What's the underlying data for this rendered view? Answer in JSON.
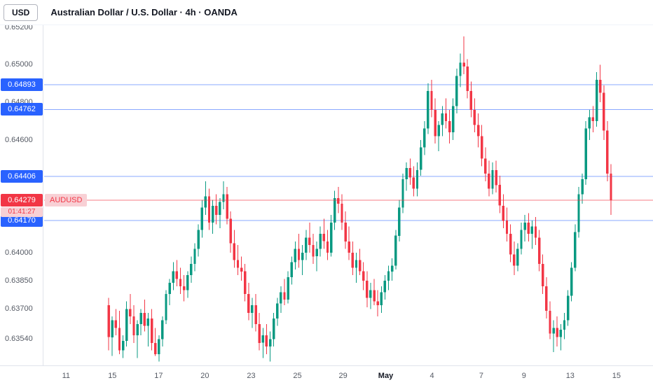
{
  "header": {
    "unit_button": "USD",
    "title": "Australian Dollar / U.S. Dollar · 4h · OANDA"
  },
  "colors": {
    "up": "#089981",
    "down": "#F23645",
    "level_line": "#2962FF",
    "badge_blue_bg": "#2962FF",
    "badge_red_bg": "#F23645",
    "chip_pink_bg": "#F8D0D5",
    "chip_red_text": "#F23645",
    "axis_text": "#555A64",
    "title_text": "#131722",
    "border": "#E0E3EB"
  },
  "price_scale": {
    "labels": [
      "0.65200",
      "0.65000",
      "0.64800",
      "0.64600",
      "0.64000",
      "0.63850",
      "0.63700",
      "0.63540"
    ],
    "level_badges": [
      "0.64893",
      "0.64762",
      "0.64406",
      "0.64170"
    ],
    "current_price_badge": {
      "value": "0.64279",
      "symbol": "AUDUSD",
      "countdown": "01:41:27"
    }
  },
  "time_axis": {
    "labels": [
      {
        "label": "11",
        "pos": 0.036
      },
      {
        "label": "15",
        "pos": 0.112
      },
      {
        "label": "17",
        "pos": 0.188
      },
      {
        "label": "20",
        "pos": 0.264
      },
      {
        "label": "23",
        "pos": 0.34
      },
      {
        "label": "25",
        "pos": 0.416
      },
      {
        "label": "29",
        "pos": 0.491
      },
      {
        "label": "May",
        "pos": 0.561,
        "emphasis": true
      },
      {
        "label": "4",
        "pos": 0.637
      },
      {
        "label": "7",
        "pos": 0.718
      },
      {
        "label": "9",
        "pos": 0.788
      },
      {
        "label": "13",
        "pos": 0.864
      },
      {
        "label": "15",
        "pos": 0.94
      }
    ]
  },
  "chart_data": {
    "type": "candlestick",
    "title": "Australian Dollar / U.S. Dollar",
    "symbol": "AUDUSD",
    "interval": "4h",
    "exchange": "OANDA",
    "y_range": [
      0.634,
      0.6521
    ],
    "x_span": [
      0.106,
      0.931
    ],
    "value_divisor": 100000,
    "horizontal_lines": [
      0.64893,
      0.64762,
      0.64406,
      0.6417
    ],
    "last_price": 0.64279,
    "current_price_line": true,
    "grid": false,
    "candles": [
      [
        63720,
        63760,
        63480,
        63550
      ],
      [
        63550,
        63660,
        63450,
        63640
      ],
      [
        63640,
        63700,
        63560,
        63600
      ],
      [
        63600,
        63690,
        63460,
        63480
      ],
      [
        63480,
        63560,
        63440,
        63530
      ],
      [
        63530,
        63740,
        63500,
        63700
      ],
      [
        63700,
        63780,
        63620,
        63660
      ],
      [
        63660,
        63720,
        63520,
        63560
      ],
      [
        63560,
        63640,
        63440,
        63620
      ],
      [
        63620,
        63700,
        63560,
        63680
      ],
      [
        63680,
        63750,
        63580,
        63610
      ],
      [
        63610,
        63680,
        63500,
        63650
      ],
      [
        63650,
        63700,
        63480,
        63520
      ],
      [
        63520,
        63600,
        63450,
        63460
      ],
      [
        63460,
        63560,
        63420,
        63540
      ],
      [
        63540,
        63660,
        63500,
        63640
      ],
      [
        63640,
        63800,
        63620,
        63780
      ],
      [
        63780,
        63860,
        63720,
        63840
      ],
      [
        63840,
        63950,
        63800,
        63900
      ],
      [
        63900,
        63960,
        63820,
        63860
      ],
      [
        63860,
        63920,
        63780,
        63820
      ],
      [
        63820,
        63880,
        63740,
        63800
      ],
      [
        63800,
        63900,
        63760,
        63880
      ],
      [
        63880,
        63980,
        63840,
        63940
      ],
      [
        63940,
        64050,
        63900,
        64020
      ],
      [
        64020,
        64150,
        63980,
        64120
      ],
      [
        64120,
        64280,
        64080,
        64240
      ],
      [
        64240,
        64380,
        64200,
        64300
      ],
      [
        64300,
        64340,
        64120,
        64160
      ],
      [
        64160,
        64280,
        64100,
        64250
      ],
      [
        64250,
        64310,
        64150,
        64200
      ],
      [
        64200,
        64290,
        64130,
        64270
      ],
      [
        64270,
        64380,
        64230,
        64310
      ],
      [
        64310,
        64350,
        64150,
        64180
      ],
      [
        64180,
        64220,
        64000,
        64050
      ],
      [
        64050,
        64120,
        63920,
        63960
      ],
      [
        63960,
        64040,
        63880,
        63920
      ],
      [
        63920,
        63980,
        63850,
        63900
      ],
      [
        63900,
        63940,
        63740,
        63780
      ],
      [
        63780,
        63840,
        63640,
        63680
      ],
      [
        63680,
        63760,
        63600,
        63720
      ],
      [
        63720,
        63780,
        63580,
        63620
      ],
      [
        63620,
        63680,
        63480,
        63520
      ],
      [
        63520,
        63600,
        63440,
        63560
      ],
      [
        63560,
        63620,
        63460,
        63500
      ],
      [
        63500,
        63580,
        63420,
        63540
      ],
      [
        63540,
        63680,
        63500,
        63650
      ],
      [
        63650,
        63760,
        63610,
        63730
      ],
      [
        63730,
        63820,
        63680,
        63790
      ],
      [
        63790,
        63860,
        63720,
        63750
      ],
      [
        63750,
        63900,
        63730,
        63870
      ],
      [
        63870,
        63980,
        63830,
        63950
      ],
      [
        63950,
        64060,
        63910,
        64020
      ],
      [
        64020,
        64100,
        63920,
        63960
      ],
      [
        63960,
        64040,
        63880,
        64000
      ],
      [
        64000,
        64120,
        63960,
        64080
      ],
      [
        64080,
        64160,
        64000,
        64040
      ],
      [
        64040,
        64100,
        63940,
        63980
      ],
      [
        63980,
        64060,
        63900,
        64020
      ],
      [
        64020,
        64140,
        63980,
        64100
      ],
      [
        64100,
        64180,
        64020,
        64060
      ],
      [
        64060,
        64120,
        63960,
        64000
      ],
      [
        64000,
        64200,
        63980,
        64160
      ],
      [
        64160,
        64330,
        64120,
        64290
      ],
      [
        64290,
        64350,
        64210,
        64260
      ],
      [
        64260,
        64310,
        64120,
        64160
      ],
      [
        64160,
        64220,
        64020,
        64060
      ],
      [
        64060,
        64140,
        63960,
        64000
      ],
      [
        64000,
        64060,
        63880,
        63920
      ],
      [
        63920,
        64000,
        63840,
        63960
      ],
      [
        63960,
        64020,
        63880,
        63900
      ],
      [
        63900,
        63950,
        63800,
        63850
      ],
      [
        63850,
        63900,
        63710,
        63760
      ],
      [
        63760,
        63840,
        63700,
        63800
      ],
      [
        63800,
        63860,
        63720,
        63740
      ],
      [
        63740,
        63800,
        63660,
        63720
      ],
      [
        63720,
        63820,
        63680,
        63790
      ],
      [
        63790,
        63880,
        63750,
        63850
      ],
      [
        63850,
        63930,
        63800,
        63900
      ],
      [
        63900,
        63970,
        63850,
        63930
      ],
      [
        63930,
        64120,
        63910,
        64090
      ],
      [
        64090,
        64280,
        64060,
        64240
      ],
      [
        64240,
        64420,
        64210,
        64390
      ],
      [
        64390,
        64480,
        64330,
        64450
      ],
      [
        64450,
        64500,
        64360,
        64400
      ],
      [
        64400,
        64460,
        64300,
        64340
      ],
      [
        64340,
        64480,
        64300,
        64440
      ],
      [
        64440,
        64600,
        64410,
        64560
      ],
      [
        64560,
        64700,
        64520,
        64660
      ],
      [
        64660,
        64900,
        64630,
        64860
      ],
      [
        64860,
        64920,
        64720,
        64760
      ],
      [
        64760,
        64820,
        64580,
        64620
      ],
      [
        64620,
        64700,
        64540,
        64680
      ],
      [
        64680,
        64780,
        64620,
        64740
      ],
      [
        64740,
        64820,
        64660,
        64700
      ],
      [
        64700,
        64760,
        64580,
        64640
      ],
      [
        64640,
        64820,
        64600,
        64780
      ],
      [
        64780,
        64980,
        64740,
        64940
      ],
      [
        64940,
        65060,
        64880,
        65010
      ],
      [
        65010,
        65150,
        64950,
        64990
      ],
      [
        64990,
        65030,
        64820,
        64860
      ],
      [
        64860,
        64910,
        64720,
        64760
      ],
      [
        64760,
        64820,
        64640,
        64680
      ],
      [
        64680,
        64740,
        64560,
        64620
      ],
      [
        64620,
        64680,
        64460,
        64500
      ],
      [
        64500,
        64560,
        64380,
        64420
      ],
      [
        64420,
        64490,
        64300,
        64340
      ],
      [
        64340,
        64480,
        64310,
        64440
      ],
      [
        64440,
        64490,
        64320,
        64360
      ],
      [
        64360,
        64410,
        64210,
        64250
      ],
      [
        64250,
        64310,
        64130,
        64170
      ],
      [
        64170,
        64240,
        64060,
        64100
      ],
      [
        64100,
        64150,
        63950,
        63990
      ],
      [
        63990,
        64060,
        63880,
        63930
      ],
      [
        63930,
        64050,
        63900,
        64020
      ],
      [
        64020,
        64160,
        63990,
        64120
      ],
      [
        64120,
        64200,
        64060,
        64160
      ],
      [
        64160,
        64210,
        64060,
        64100
      ],
      [
        64100,
        64170,
        64020,
        64140
      ],
      [
        64140,
        64190,
        64040,
        64080
      ],
      [
        64080,
        64120,
        63900,
        63940
      ],
      [
        63940,
        63990,
        63780,
        63820
      ],
      [
        63820,
        63870,
        63650,
        63690
      ],
      [
        63690,
        63740,
        63540,
        63570
      ],
      [
        63570,
        63640,
        63470,
        63600
      ],
      [
        63600,
        63660,
        63500,
        63550
      ],
      [
        63550,
        63620,
        63480,
        63590
      ],
      [
        63590,
        63680,
        63540,
        63640
      ],
      [
        63640,
        63800,
        63610,
        63770
      ],
      [
        63770,
        63950,
        63740,
        63920
      ],
      [
        63920,
        64150,
        63900,
        64110
      ],
      [
        64110,
        64350,
        64080,
        64310
      ],
      [
        64310,
        64420,
        64260,
        64390
      ],
      [
        64390,
        64700,
        64360,
        64660
      ],
      [
        64660,
        64760,
        64600,
        64720
      ],
      [
        64720,
        64780,
        64640,
        64700
      ],
      [
        64700,
        64960,
        64670,
        64920
      ],
      [
        64920,
        65000,
        64800,
        64850
      ],
      [
        64850,
        64890,
        64600,
        64650
      ],
      [
        64650,
        64700,
        64380,
        64420
      ],
      [
        64420,
        64470,
        64200,
        64279
      ]
    ]
  }
}
